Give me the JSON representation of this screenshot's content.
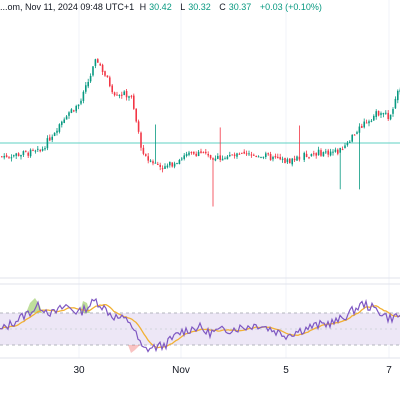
{
  "header": {
    "source": "...om, Nov 11, 2024 09:48 UTC+1",
    "high_label": "H",
    "high": "30.42",
    "low_label": "L",
    "low": "30.32",
    "close_label": "C",
    "close": "30.37",
    "change": "+0.03 (+0.10%)"
  },
  "colors": {
    "up": "#089981",
    "down": "#f23645",
    "rsi_line": "#7e57c2",
    "rsi_band": "#ede7f6",
    "rsi_ma": "#f2b134",
    "ref_line": "#5fd1c3"
  },
  "chart_data": [
    {
      "type": "candlestick",
      "title": "",
      "x_tick_labels": [
        "30",
        "Nov",
        "5",
        "7"
      ],
      "x_tick_dates": [
        "2024-10-30",
        "2024-11-01",
        "2024-11-05",
        "2024-11-07"
      ],
      "price_range": [
        28.3,
        31.1
      ],
      "reference_line": 29.96,
      "series": [
        {
          "x": "2024-10-28",
          "close": 29.6
        },
        {
          "x": "2024-10-28 12:00",
          "close": 29.62
        },
        {
          "x": "2024-10-29",
          "close": 29.85
        },
        {
          "x": "2024-10-29 12:00",
          "close": 30.08
        },
        {
          "x": "2024-10-30",
          "close": 30.2
        },
        {
          "x": "2024-10-30 08:00",
          "close": 30.75
        },
        {
          "x": "2024-10-30 16:00",
          "close": 30.34
        },
        {
          "x": "2024-10-31",
          "close": 30.3
        },
        {
          "x": "2024-10-31 06:00",
          "close": 29.55
        },
        {
          "x": "2024-10-31 16:00",
          "close": 29.42
        },
        {
          "x": "2024-11-01",
          "close": 29.55
        },
        {
          "x": "2024-11-01 16:00",
          "close": 29.62
        },
        {
          "x": "2024-11-02",
          "close": 29.55
        },
        {
          "x": "2024-11-04",
          "close": 29.58
        },
        {
          "x": "2024-11-04 16:00",
          "close": 29.52
        },
        {
          "x": "2024-11-05",
          "close": 29.5
        },
        {
          "x": "2024-11-05 12:00",
          "close": 29.6
        },
        {
          "x": "2024-11-06",
          "close": 29.62
        },
        {
          "x": "2024-11-06 12:00",
          "close": 29.97
        },
        {
          "x": "2024-11-06 20:00",
          "close": 30.12
        },
        {
          "x": "2024-11-07",
          "close": 30.02
        },
        {
          "x": "2024-11-07 12:00",
          "close": 30.6
        },
        {
          "x": "2024-11-08",
          "close": 30.78
        }
      ]
    },
    {
      "type": "line",
      "title": "",
      "x_tick_labels": [
        "30",
        "Nov",
        "5",
        "7"
      ],
      "band": [
        30,
        70
      ],
      "y_range": [
        20,
        85
      ],
      "series": [
        {
          "x": "2024-10-28",
          "value": 62
        },
        {
          "x": "2024-10-28 12:00",
          "value": 70
        },
        {
          "x": "2024-10-29",
          "value": 62
        },
        {
          "x": "2024-10-29 12:00",
          "value": 70
        },
        {
          "x": "2024-10-30",
          "value": 63
        },
        {
          "x": "2024-10-30 08:00",
          "value": 75
        },
        {
          "x": "2024-10-30 16:00",
          "value": 60
        },
        {
          "x": "2024-10-31",
          "value": 55
        },
        {
          "x": "2024-10-31 06:00",
          "value": 28
        },
        {
          "x": "2024-10-31 16:00",
          "value": 32
        },
        {
          "x": "2024-11-01",
          "value": 45
        },
        {
          "x": "2024-11-01 16:00",
          "value": 50
        },
        {
          "x": "2024-11-02",
          "value": 44
        },
        {
          "x": "2024-11-04",
          "value": 52
        },
        {
          "x": "2024-11-04 16:00",
          "value": 45
        },
        {
          "x": "2024-11-05",
          "value": 42
        },
        {
          "x": "2024-11-05 12:00",
          "value": 50
        },
        {
          "x": "2024-11-06",
          "value": 55
        },
        {
          "x": "2024-11-06 12:00",
          "value": 72
        },
        {
          "x": "2024-11-06 20:00",
          "value": 64
        },
        {
          "x": "2024-11-07",
          "value": 58
        },
        {
          "x": "2024-11-07 12:00",
          "value": 62
        },
        {
          "x": "2024-11-08",
          "value": 68
        }
      ]
    }
  ]
}
